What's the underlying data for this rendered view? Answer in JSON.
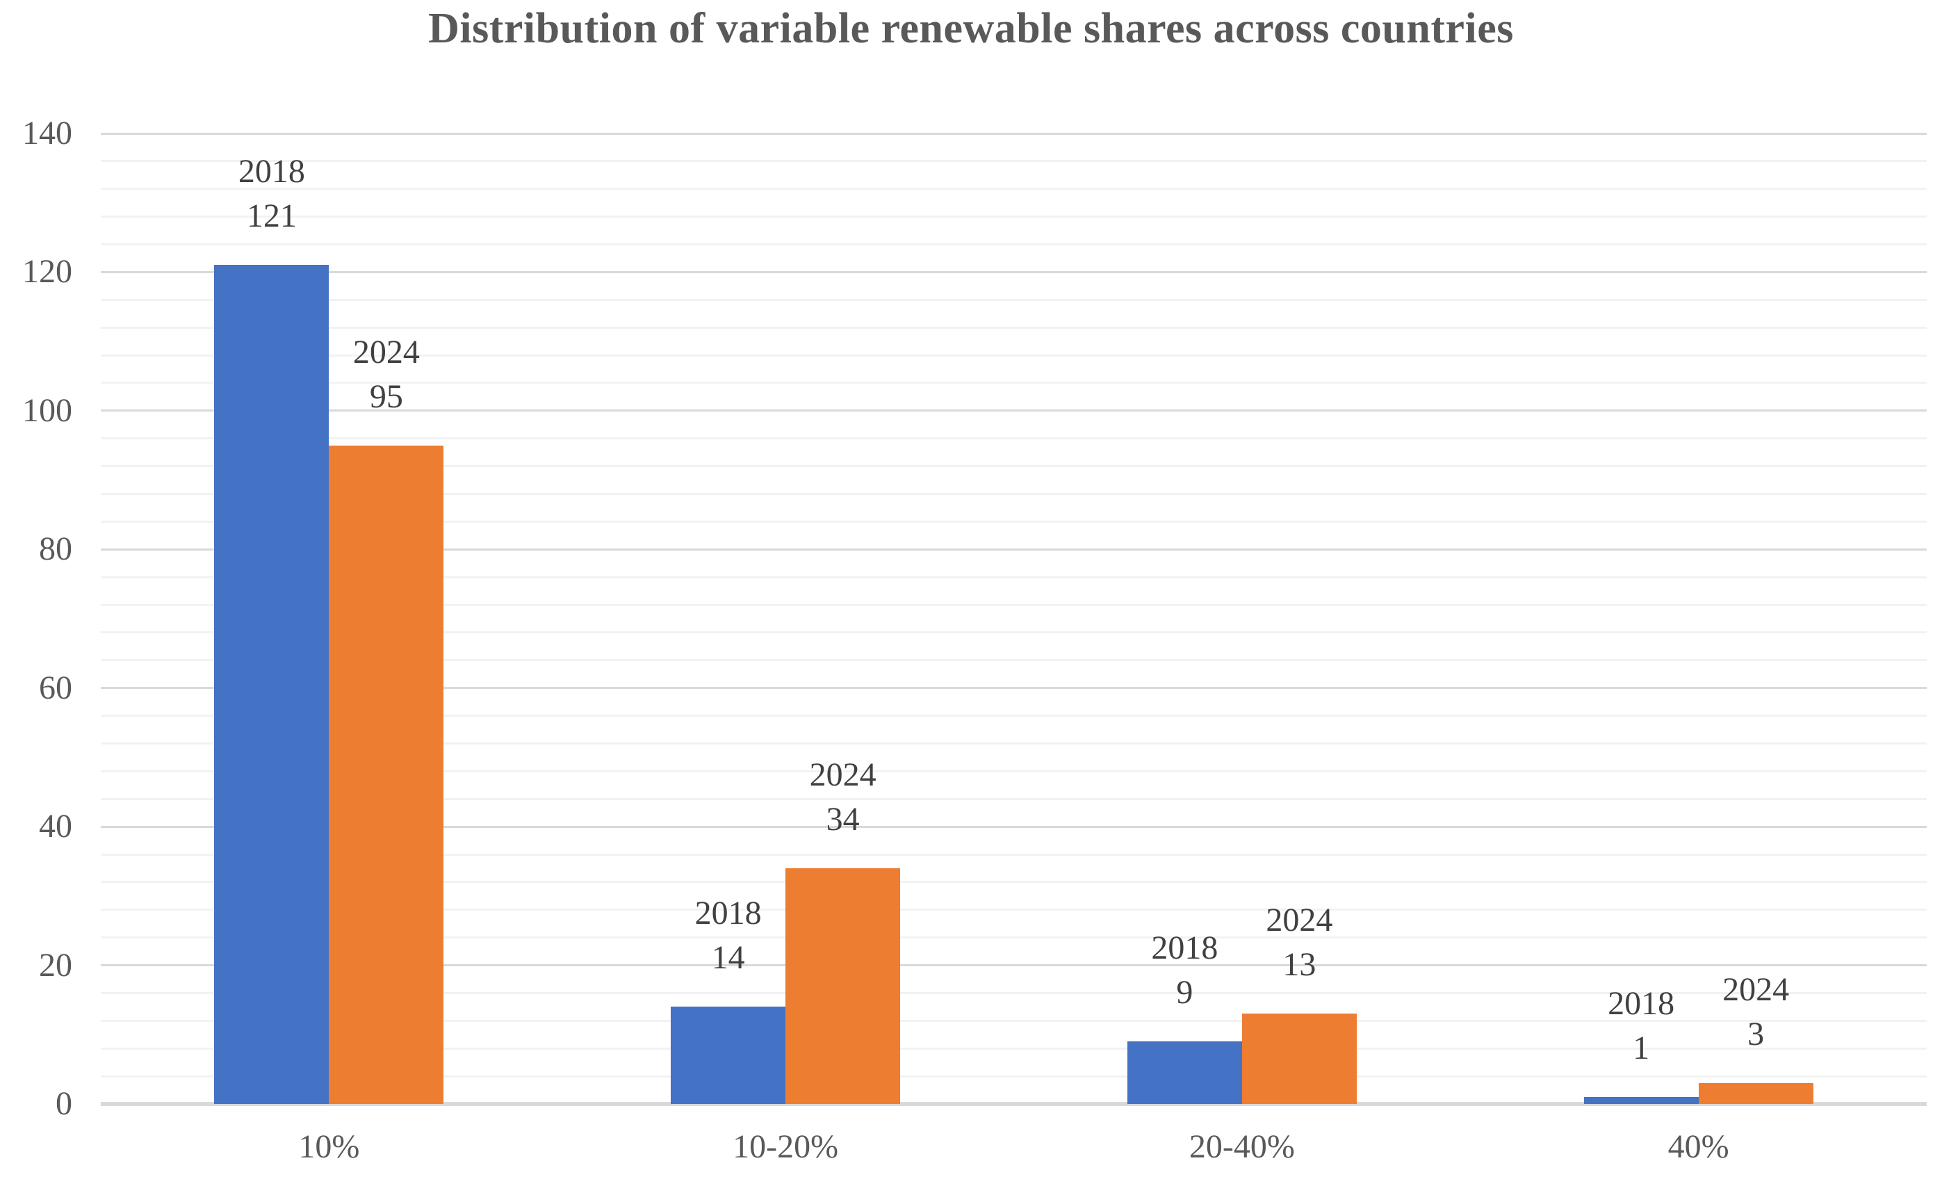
{
  "chart_data": {
    "type": "bar",
    "title": "Distribution of variable renewable shares across countries",
    "categories": [
      "10%",
      "10-20%",
      "20-40%",
      "40%"
    ],
    "series": [
      {
        "name": "2018",
        "color": "#4472C4",
        "values": [
          121,
          14,
          9,
          1
        ]
      },
      {
        "name": "2024",
        "color": "#ED7D31",
        "values": [
          95,
          34,
          13,
          3
        ]
      }
    ],
    "data_labels": [
      [
        {
          "line1": "2018",
          "line2": "121"
        },
        {
          "line1": "2018",
          "line2": "14"
        },
        {
          "line1": "2018",
          "line2": "9"
        },
        {
          "line1": "2018",
          "line2": "1"
        }
      ],
      [
        {
          "line1": "2024",
          "line2": "95"
        },
        {
          "line1": "2024",
          "line2": "34"
        },
        {
          "line1": "2024",
          "line2": "13"
        },
        {
          "line1": "2024",
          "line2": "3"
        }
      ]
    ],
    "xlabel": "",
    "ylabel": "",
    "ylim": [
      0,
      140
    ],
    "y_major_step": 20,
    "y_minor_step": 4,
    "y_tick_labels": [
      "0",
      "20",
      "40",
      "60",
      "80",
      "100",
      "120",
      "140"
    ],
    "grid": "major and minor horizontal gridlines",
    "legend_position": "none",
    "colors": {
      "series_2018": "#4472C4",
      "series_2024": "#ED7D31",
      "title_text": "#595959",
      "axis_text": "#595959",
      "data_label_text": "#404040",
      "major_gridline": "#D9D9D9",
      "minor_gridline": "#F2F2F2",
      "axis_line": "#D9D9D9",
      "background": "#FFFFFF"
    }
  }
}
